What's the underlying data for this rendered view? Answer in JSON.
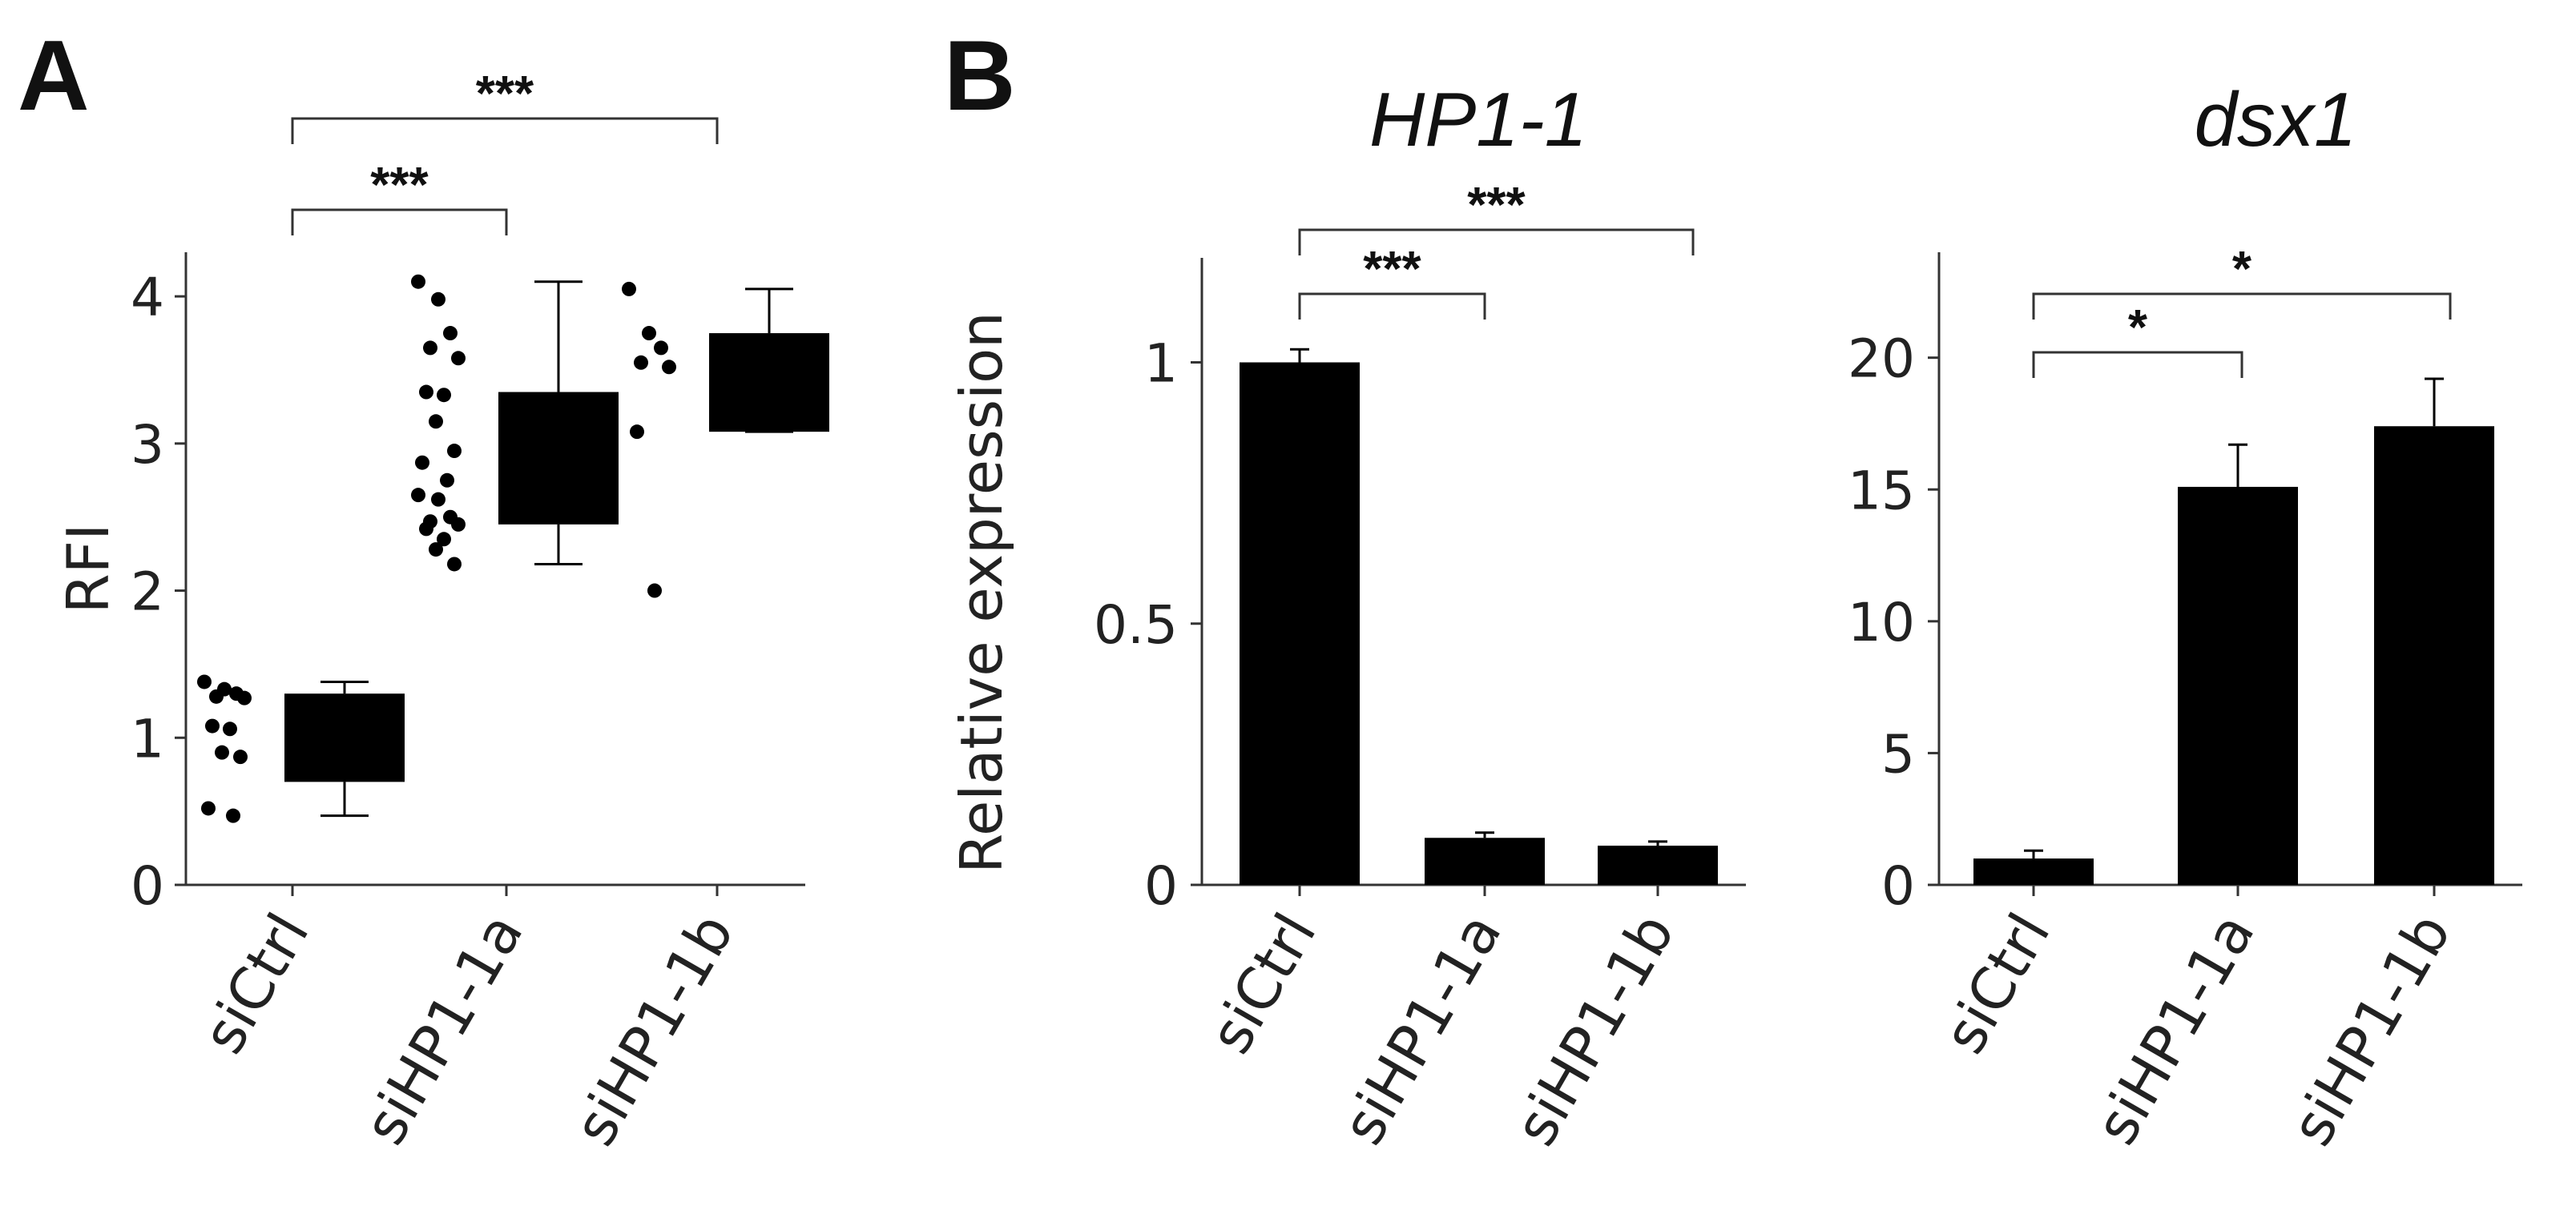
{
  "panel_labels": {
    "a": "A",
    "b": "B"
  },
  "colors": {
    "mark": "#000000",
    "axis": "#333333",
    "text": "#222222"
  },
  "chart_data": [
    {
      "panel": "A",
      "type": "box",
      "title": "",
      "xlabel": "",
      "ylabel": "RFI",
      "ylim": [
        0,
        4.3
      ],
      "yticks": [
        0,
        1,
        2,
        3,
        4
      ],
      "categories": [
        "siCtrl",
        "siHP1-1a",
        "siHP1-1b"
      ],
      "boxes": [
        {
          "category": "siCtrl",
          "q1": 0.7,
          "q3": 1.3,
          "whisker_low": 0.47,
          "whisker_high": 1.38,
          "points": [
            1.38,
            1.33,
            1.3,
            1.28,
            1.27,
            1.08,
            1.06,
            0.9,
            0.87,
            0.52,
            0.47
          ]
        },
        {
          "category": "siHP1-1a",
          "q1": 2.45,
          "q3": 3.35,
          "whisker_low": 2.18,
          "whisker_high": 4.1,
          "points": [
            4.1,
            3.98,
            3.75,
            3.65,
            3.58,
            3.35,
            3.33,
            3.15,
            2.95,
            2.87,
            2.75,
            2.65,
            2.62,
            2.5,
            2.47,
            2.45,
            2.42,
            2.35,
            2.28,
            2.18
          ]
        },
        {
          "category": "siHP1-1b",
          "q1": 3.08,
          "q3": 3.75,
          "whisker_low": 3.08,
          "whisker_high": 4.05,
          "points": [
            4.05,
            3.75,
            3.65,
            3.55,
            3.52,
            3.08,
            2.0
          ]
        }
      ],
      "significance": [
        {
          "from": "siCtrl",
          "to": "siHP1-1a",
          "label": "***"
        },
        {
          "from": "siCtrl",
          "to": "siHP1-1b",
          "label": "***"
        }
      ]
    },
    {
      "panel": "B",
      "type": "bar",
      "title": "HP1-1",
      "xlabel": "",
      "ylabel": "Relative expression",
      "ylim": [
        0,
        1.2
      ],
      "yticks": [
        0,
        0.5,
        1
      ],
      "ytick_labels": [
        "0",
        "0.5",
        "1"
      ],
      "categories": [
        "siCtrl",
        "siHP1-1a",
        "siHP1-1b"
      ],
      "values": [
        1.0,
        0.09,
        0.075
      ],
      "errors": [
        0.025,
        0.01,
        0.008
      ],
      "significance": [
        {
          "from": "siCtrl",
          "to": "siHP1-1a",
          "label": "***"
        },
        {
          "from": "siCtrl",
          "to": "siHP1-1b",
          "label": "***"
        }
      ]
    },
    {
      "panel": "B",
      "type": "bar",
      "title": "dsx1",
      "xlabel": "",
      "ylabel": "",
      "ylim": [
        0,
        24
      ],
      "yticks": [
        0,
        5,
        10,
        15,
        20
      ],
      "ytick_labels": [
        "0",
        "5",
        "10",
        "15",
        "20"
      ],
      "categories": [
        "siCtrl",
        "siHP1-1a",
        "siHP1-1b"
      ],
      "values": [
        1.0,
        15.1,
        17.4
      ],
      "errors": [
        0.3,
        1.6,
        1.8
      ],
      "significance": [
        {
          "from": "siCtrl",
          "to": "siHP1-1a",
          "label": "*"
        },
        {
          "from": "siCtrl",
          "to": "siHP1-1b",
          "label": "*"
        }
      ]
    }
  ]
}
